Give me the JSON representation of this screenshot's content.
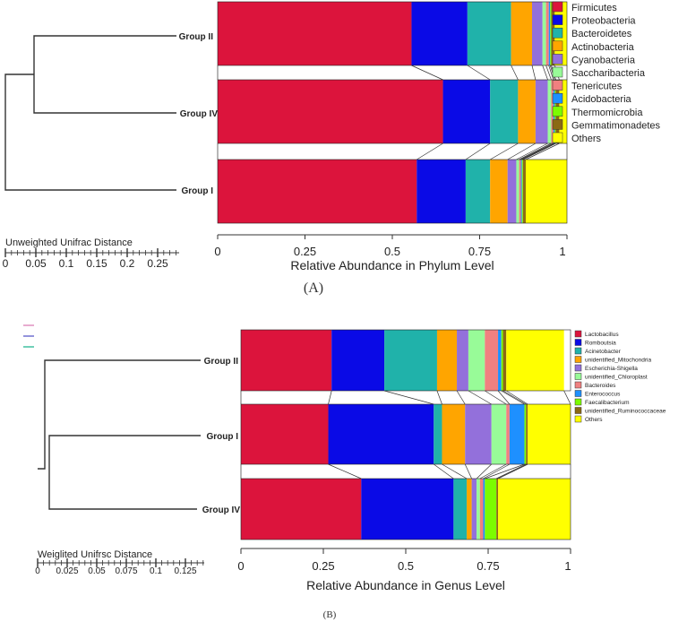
{
  "chart_data": [
    {
      "type": "bar",
      "orientation": "horizontal-stacked",
      "panel_label": "(A)",
      "xlabel": "Relative Abundance in Phylum Level",
      "xlim": [
        0,
        1
      ],
      "xticks": [
        "0",
        "0.25",
        "0.5",
        "0.75",
        "1"
      ],
      "tree_label": "Unweighted Unifrac Distance",
      "tree_ticks": [
        "0",
        "0.05",
        "0.1",
        "0.15",
        "0.2",
        "0.25"
      ],
      "categories": [
        "Group II",
        "Group IV",
        "Group I"
      ],
      "series": [
        {
          "name": "Firmicutes",
          "color": "#dc143c",
          "values": [
            0.555,
            0.645,
            0.57
          ]
        },
        {
          "name": "Proteobacteria",
          "color": "#0a0ae6",
          "values": [
            0.16,
            0.135,
            0.14
          ]
        },
        {
          "name": "Bacteroidetes",
          "color": "#20b2aa",
          "values": [
            0.125,
            0.08,
            0.07
          ]
        },
        {
          "name": "Actinobacteria",
          "color": "#ffa500",
          "values": [
            0.06,
            0.05,
            0.05
          ]
        },
        {
          "name": "Cyanobacteria",
          "color": "#9370db",
          "values": [
            0.03,
            0.035,
            0.025
          ]
        },
        {
          "name": "Saccharibacteria",
          "color": "#98fb98",
          "values": [
            0.01,
            0.01,
            0.008
          ]
        },
        {
          "name": "Tenericutes",
          "color": "#f08080",
          "values": [
            0.008,
            0.006,
            0.005
          ]
        },
        {
          "name": "Acidobacteria",
          "color": "#1e90ff",
          "values": [
            0.004,
            0.004,
            0.003
          ]
        },
        {
          "name": "Thermomicrobia",
          "color": "#7cfc00",
          "values": [
            0.003,
            0.003,
            0.003
          ]
        },
        {
          "name": "Gemmatimonadetes",
          "color": "#8b6914",
          "values": [
            0.01,
            0.01,
            0.008
          ]
        },
        {
          "name": "Others",
          "color": "#ffff00",
          "values": [
            0.035,
            0.022,
            0.118
          ]
        }
      ]
    },
    {
      "type": "bar",
      "orientation": "horizontal-stacked",
      "panel_label": "(B)",
      "xlabel": "Relative Abundance in Genus Level",
      "xlim": [
        0,
        1
      ],
      "xticks": [
        "0",
        "0.25",
        "0.5",
        "0.75",
        "1"
      ],
      "tree_label": "Weiglited Unifrsc Distance",
      "tree_ticks": [
        "0",
        "0.025",
        "0.05",
        "0.075",
        "0.1",
        "0.125"
      ],
      "categories": [
        "Group II",
        "Group I",
        "Group IV"
      ],
      "series": [
        {
          "name": "Lactobacillus",
          "color": "#dc143c",
          "values": [
            0.275,
            0.265,
            0.365
          ]
        },
        {
          "name": "Romboutsia",
          "color": "#0a0ae6",
          "values": [
            0.16,
            0.32,
            0.28
          ]
        },
        {
          "name": "Acinetobacter",
          "color": "#20b2aa",
          "values": [
            0.16,
            0.025,
            0.04
          ]
        },
        {
          "name": "unidentified_Mitochondria",
          "color": "#ffa500",
          "values": [
            0.06,
            0.07,
            0.015
          ]
        },
        {
          "name": "Escherichia-Shigella",
          "color": "#9370db",
          "values": [
            0.035,
            0.08,
            0.015
          ]
        },
        {
          "name": "unidentified_Chloroplast",
          "color": "#98fb98",
          "values": [
            0.05,
            0.045,
            0.01
          ]
        },
        {
          "name": "Bacteroides",
          "color": "#f08080",
          "values": [
            0.04,
            0.01,
            0.01
          ]
        },
        {
          "name": "Enterococcus",
          "color": "#1e90ff",
          "values": [
            0.01,
            0.045,
            0.005
          ]
        },
        {
          "name": "Faecalibacterium",
          "color": "#7cfc00",
          "values": [
            0.005,
            0.005,
            0.035
          ]
        },
        {
          "name": "unidentified_Ruminococcaceae",
          "color": "#8b6914",
          "values": [
            0.01,
            0.005,
            0.005
          ]
        },
        {
          "name": "Others",
          "color": "#ffff00",
          "values": [
            0.175,
            0.13,
            0.22
          ]
        }
      ]
    }
  ]
}
